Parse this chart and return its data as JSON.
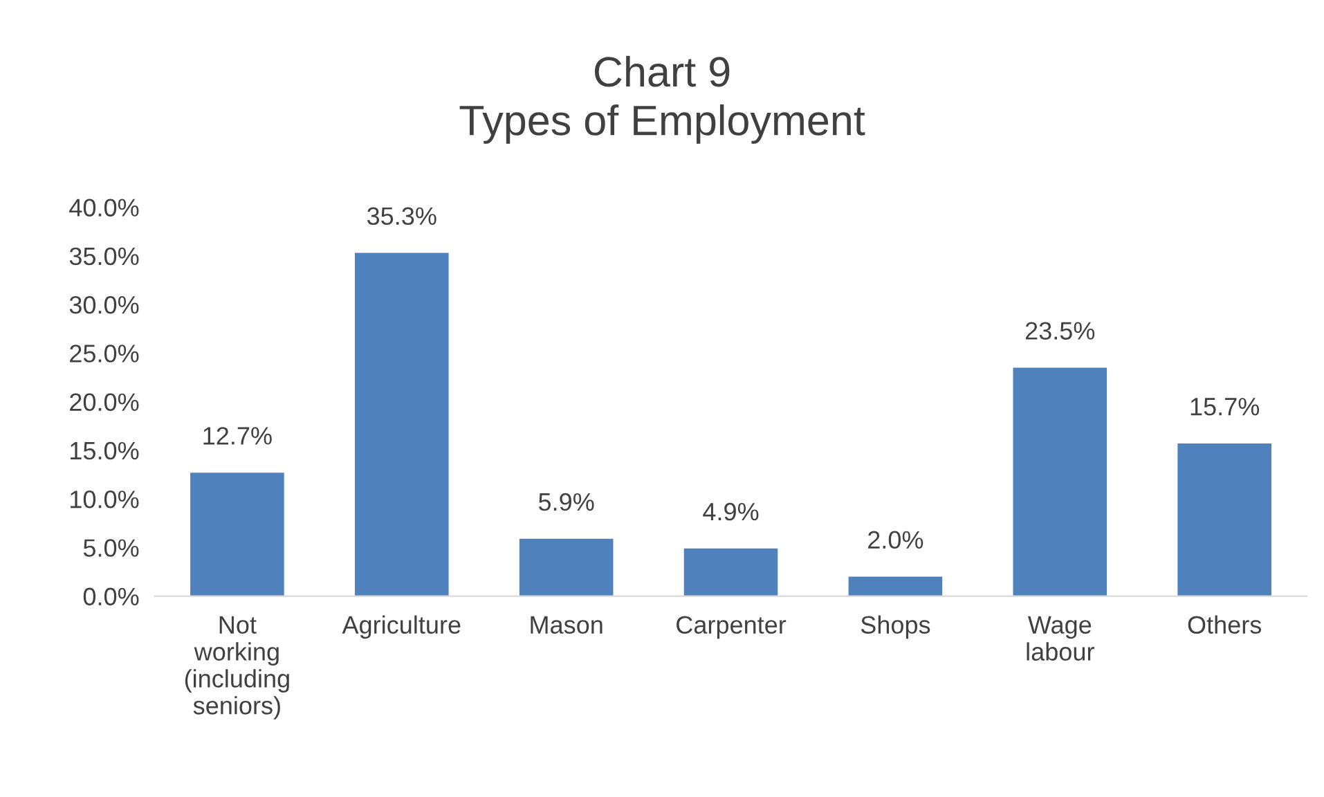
{
  "chart_data": {
    "type": "bar",
    "title": "Chart 9\nTypes of Employment",
    "categories": [
      "Not\nworking\n(including\nseniors)",
      "Agriculture",
      "Mason",
      "Carpenter",
      "Shops",
      "Wage\nlabour",
      "Others"
    ],
    "values": [
      12.7,
      35.3,
      5.9,
      4.9,
      2.0,
      23.5,
      15.7
    ],
    "value_labels": [
      "12.7%",
      "35.3%",
      "5.9%",
      "4.9%",
      "2.0%",
      "23.5%",
      "15.7%"
    ],
    "color": "#4f81bd",
    "ylim": [
      0,
      40
    ],
    "yticks": [
      {
        "value": 0,
        "label": "0.0%"
      },
      {
        "value": 5,
        "label": "5.0%"
      },
      {
        "value": 10,
        "label": "10.0%"
      },
      {
        "value": 15,
        "label": "15.0%"
      },
      {
        "value": 20,
        "label": "20.0%"
      },
      {
        "value": 25,
        "label": "25.0%"
      },
      {
        "value": 30,
        "label": "30.0%"
      },
      {
        "value": 35,
        "label": "35.0%"
      },
      {
        "value": 40,
        "label": "40.0%"
      }
    ],
    "grid": false,
    "legend": false
  }
}
